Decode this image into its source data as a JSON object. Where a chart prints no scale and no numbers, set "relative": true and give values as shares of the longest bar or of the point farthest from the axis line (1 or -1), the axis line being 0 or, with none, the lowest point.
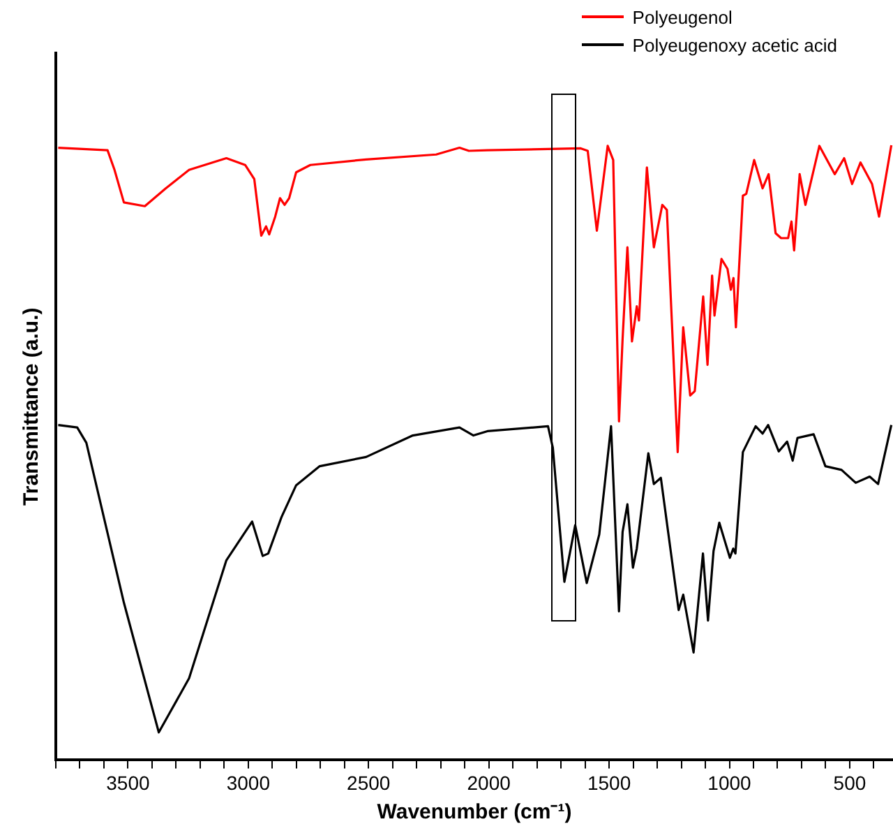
{
  "chart_data": {
    "type": "line",
    "xlabel": "Wavenumber (cm⁻¹)",
    "ylabel": "Transmittance (a.u.)",
    "relative": true,
    "legend": "top right",
    "grid": false,
    "xlim": [
      3800,
      320
    ],
    "xticks": [
      {
        "value": 3800,
        "label": null
      },
      {
        "value": 3700,
        "label": null
      },
      {
        "value": 3600,
        "label": null
      },
      3500,
      {
        "value": 3400,
        "label": null
      },
      {
        "value": 3300,
        "label": null
      },
      {
        "value": 3200,
        "label": null
      },
      {
        "value": 3100,
        "label": null
      },
      3000,
      {
        "value": 2900,
        "label": null
      },
      {
        "value": 2800,
        "label": null
      },
      {
        "value": 2700,
        "label": null
      },
      {
        "value": 2600,
        "label": null
      },
      2500,
      {
        "value": 2400,
        "label": null
      },
      {
        "value": 2300,
        "label": null
      },
      {
        "value": 2200,
        "label": null
      },
      {
        "value": 2100,
        "label": null
      },
      2000,
      {
        "value": 1900,
        "label": null
      },
      {
        "value": 1800,
        "label": null
      },
      {
        "value": 1700,
        "label": null
      },
      {
        "value": 1600,
        "label": null
      },
      1500,
      {
        "value": 1400,
        "label": null
      },
      {
        "value": 1300,
        "label": null
      },
      {
        "value": 1200,
        "label": null
      },
      {
        "value": 1100,
        "label": null
      },
      1000,
      {
        "value": 900,
        "label": null
      },
      {
        "value": 800,
        "label": null
      },
      {
        "value": 700,
        "label": null
      },
      {
        "value": 600,
        "label": null
      },
      500,
      {
        "value": 400,
        "label": null
      }
    ],
    "series": [
      {
        "name": "Polyeugenol",
        "color": "#ff0000",
        "x": [
          3790,
          3585,
          3556,
          3517,
          3430,
          3343,
          3246,
          3091,
          3013,
          2975,
          2946,
          2926,
          2913,
          2888,
          2868,
          2849,
          2830,
          2801,
          2742,
          2510,
          2219,
          2122,
          2083,
          2006,
          1618,
          1589,
          1551,
          1506,
          1483,
          1459,
          1444,
          1424,
          1405,
          1385,
          1376,
          1343,
          1314,
          1279,
          1260,
          1215,
          1192,
          1163,
          1144,
          1109,
          1091,
          1072,
          1062,
          1033,
          1008,
          994,
          983,
          973,
          944,
          930,
          897,
          862,
          837,
          808,
          785,
          756,
          742,
          731,
          708,
          684,
          626,
          562,
          523,
          490,
          455,
          407,
          378,
          327
        ],
        "values": [
          0.996,
          0.992,
          0.96,
          0.907,
          0.901,
          0.93,
          0.96,
          0.979,
          0.968,
          0.945,
          0.853,
          0.868,
          0.855,
          0.884,
          0.914,
          0.903,
          0.914,
          0.956,
          0.968,
          0.977,
          0.985,
          0.996,
          0.991,
          0.992,
          0.995,
          0.991,
          0.861,
          0.999,
          0.976,
          0.551,
          0.685,
          0.834,
          0.681,
          0.738,
          0.715,
          0.964,
          0.834,
          0.903,
          0.895,
          0.501,
          0.704,
          0.593,
          0.6,
          0.754,
          0.643,
          0.788,
          0.723,
          0.815,
          0.799,
          0.765,
          0.784,
          0.704,
          0.918,
          0.921,
          0.976,
          0.93,
          0.953,
          0.857,
          0.849,
          0.849,
          0.876,
          0.829,
          0.953,
          0.903,
          0.999,
          0.953,
          0.979,
          0.937,
          0.972,
          0.937,
          0.884,
          1
        ]
      },
      {
        "name": "Polyeugenoxy acetic acid",
        "color": "#000000",
        "x": [
          3790,
          3711,
          3673,
          3517,
          3372,
          3246,
          3091,
          2984,
          2940,
          2917,
          2862,
          2801,
          2703,
          2510,
          2316,
          2122,
          2064,
          2006,
          1754,
          1734,
          1686,
          1641,
          1593,
          1541,
          1492,
          1459,
          1444,
          1424,
          1401,
          1385,
          1337,
          1314,
          1285,
          1211,
          1192,
          1149,
          1110,
          1089,
          1066,
          1042,
          998,
          984,
          975,
          944,
          891,
          862,
          839,
          795,
          760,
          737,
          717,
          650,
          601,
          534,
          475,
          417,
          382,
          327
        ],
        "values": [
          0.545,
          0.541,
          0.516,
          0.256,
          0.045,
          0.133,
          0.325,
          0.388,
          0.332,
          0.336,
          0.395,
          0.447,
          0.478,
          0.493,
          0.528,
          0.541,
          0.528,
          0.535,
          0.543,
          0.508,
          0.29,
          0.382,
          0.288,
          0.367,
          0.543,
          0.242,
          0.371,
          0.416,
          0.313,
          0.344,
          0.499,
          0.449,
          0.459,
          0.244,
          0.269,
          0.175,
          0.336,
          0.227,
          0.34,
          0.386,
          0.329,
          0.344,
          0.336,
          0.501,
          0.543,
          0.531,
          0.545,
          0.502,
          0.518,
          0.487,
          0.524,
          0.53,
          0.478,
          0.472,
          0.451,
          0.461,
          0.449,
          0.545
        ]
      }
    ]
  }
}
